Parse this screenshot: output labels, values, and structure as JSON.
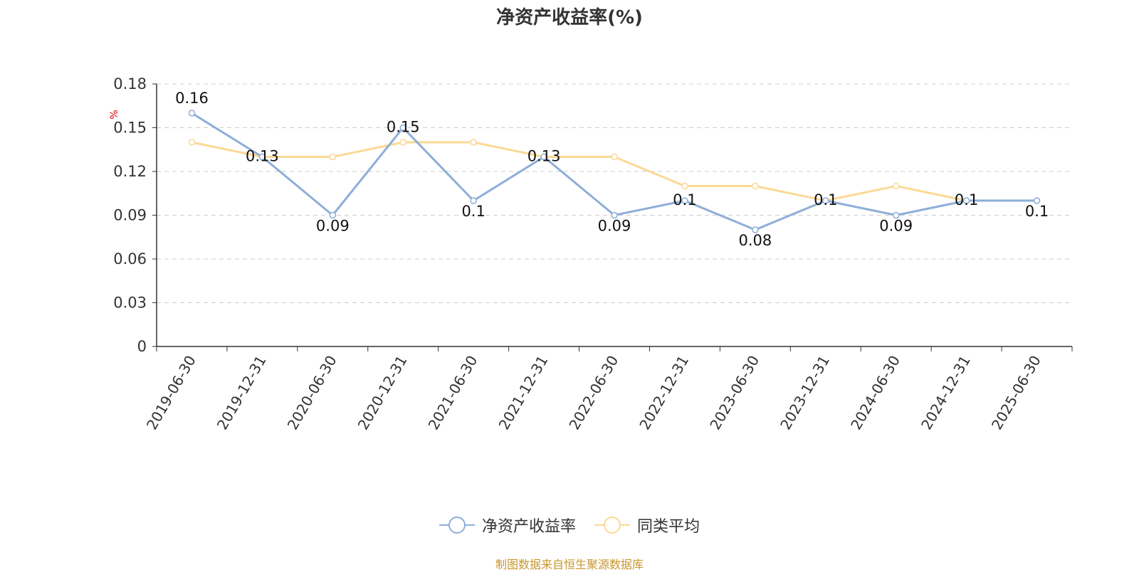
{
  "title": "净资产收益率(%)",
  "source": "制图数据来自恒生聚源数据库",
  "chart_data": {
    "type": "line",
    "title": "净资产收益率(%)",
    "ylabel": "%",
    "xlabel": "",
    "ylim": [
      0,
      0.18
    ],
    "yticks": [
      0,
      0.03,
      0.06,
      0.09,
      0.12,
      0.15,
      0.18
    ],
    "ytick_labels": [
      "0",
      "0.03",
      "0.06",
      "0.09",
      "0.12",
      "0.15",
      "0.18"
    ],
    "grid": true,
    "legend_position": "bottom",
    "categories": [
      "2019-06-30",
      "2019-12-31",
      "2020-06-30",
      "2020-12-31",
      "2021-06-30",
      "2021-12-31",
      "2022-06-30",
      "2022-12-31",
      "2023-06-30",
      "2023-12-31",
      "2024-06-30",
      "2024-12-31",
      "2025-06-30"
    ],
    "series": [
      {
        "name": "净资产收益率",
        "color": "#8eaed8",
        "values": [
          0.16,
          0.13,
          0.09,
          0.15,
          0.1,
          0.13,
          0.09,
          0.1,
          0.08,
          0.1,
          0.09,
          0.1,
          0.1
        ],
        "labels": [
          "0.16",
          "0.13",
          "0.09",
          "0.15",
          "0.1",
          "0.13",
          "0.09",
          "0.1",
          "0.08",
          "0.1",
          "0.09",
          "0.1",
          "0.1"
        ]
      },
      {
        "name": "同类平均",
        "color": "#fbd996",
        "values": [
          0.14,
          0.13,
          0.13,
          0.14,
          0.14,
          0.13,
          0.13,
          0.11,
          0.11,
          0.1,
          0.11,
          0.1,
          0.1
        ]
      }
    ]
  }
}
